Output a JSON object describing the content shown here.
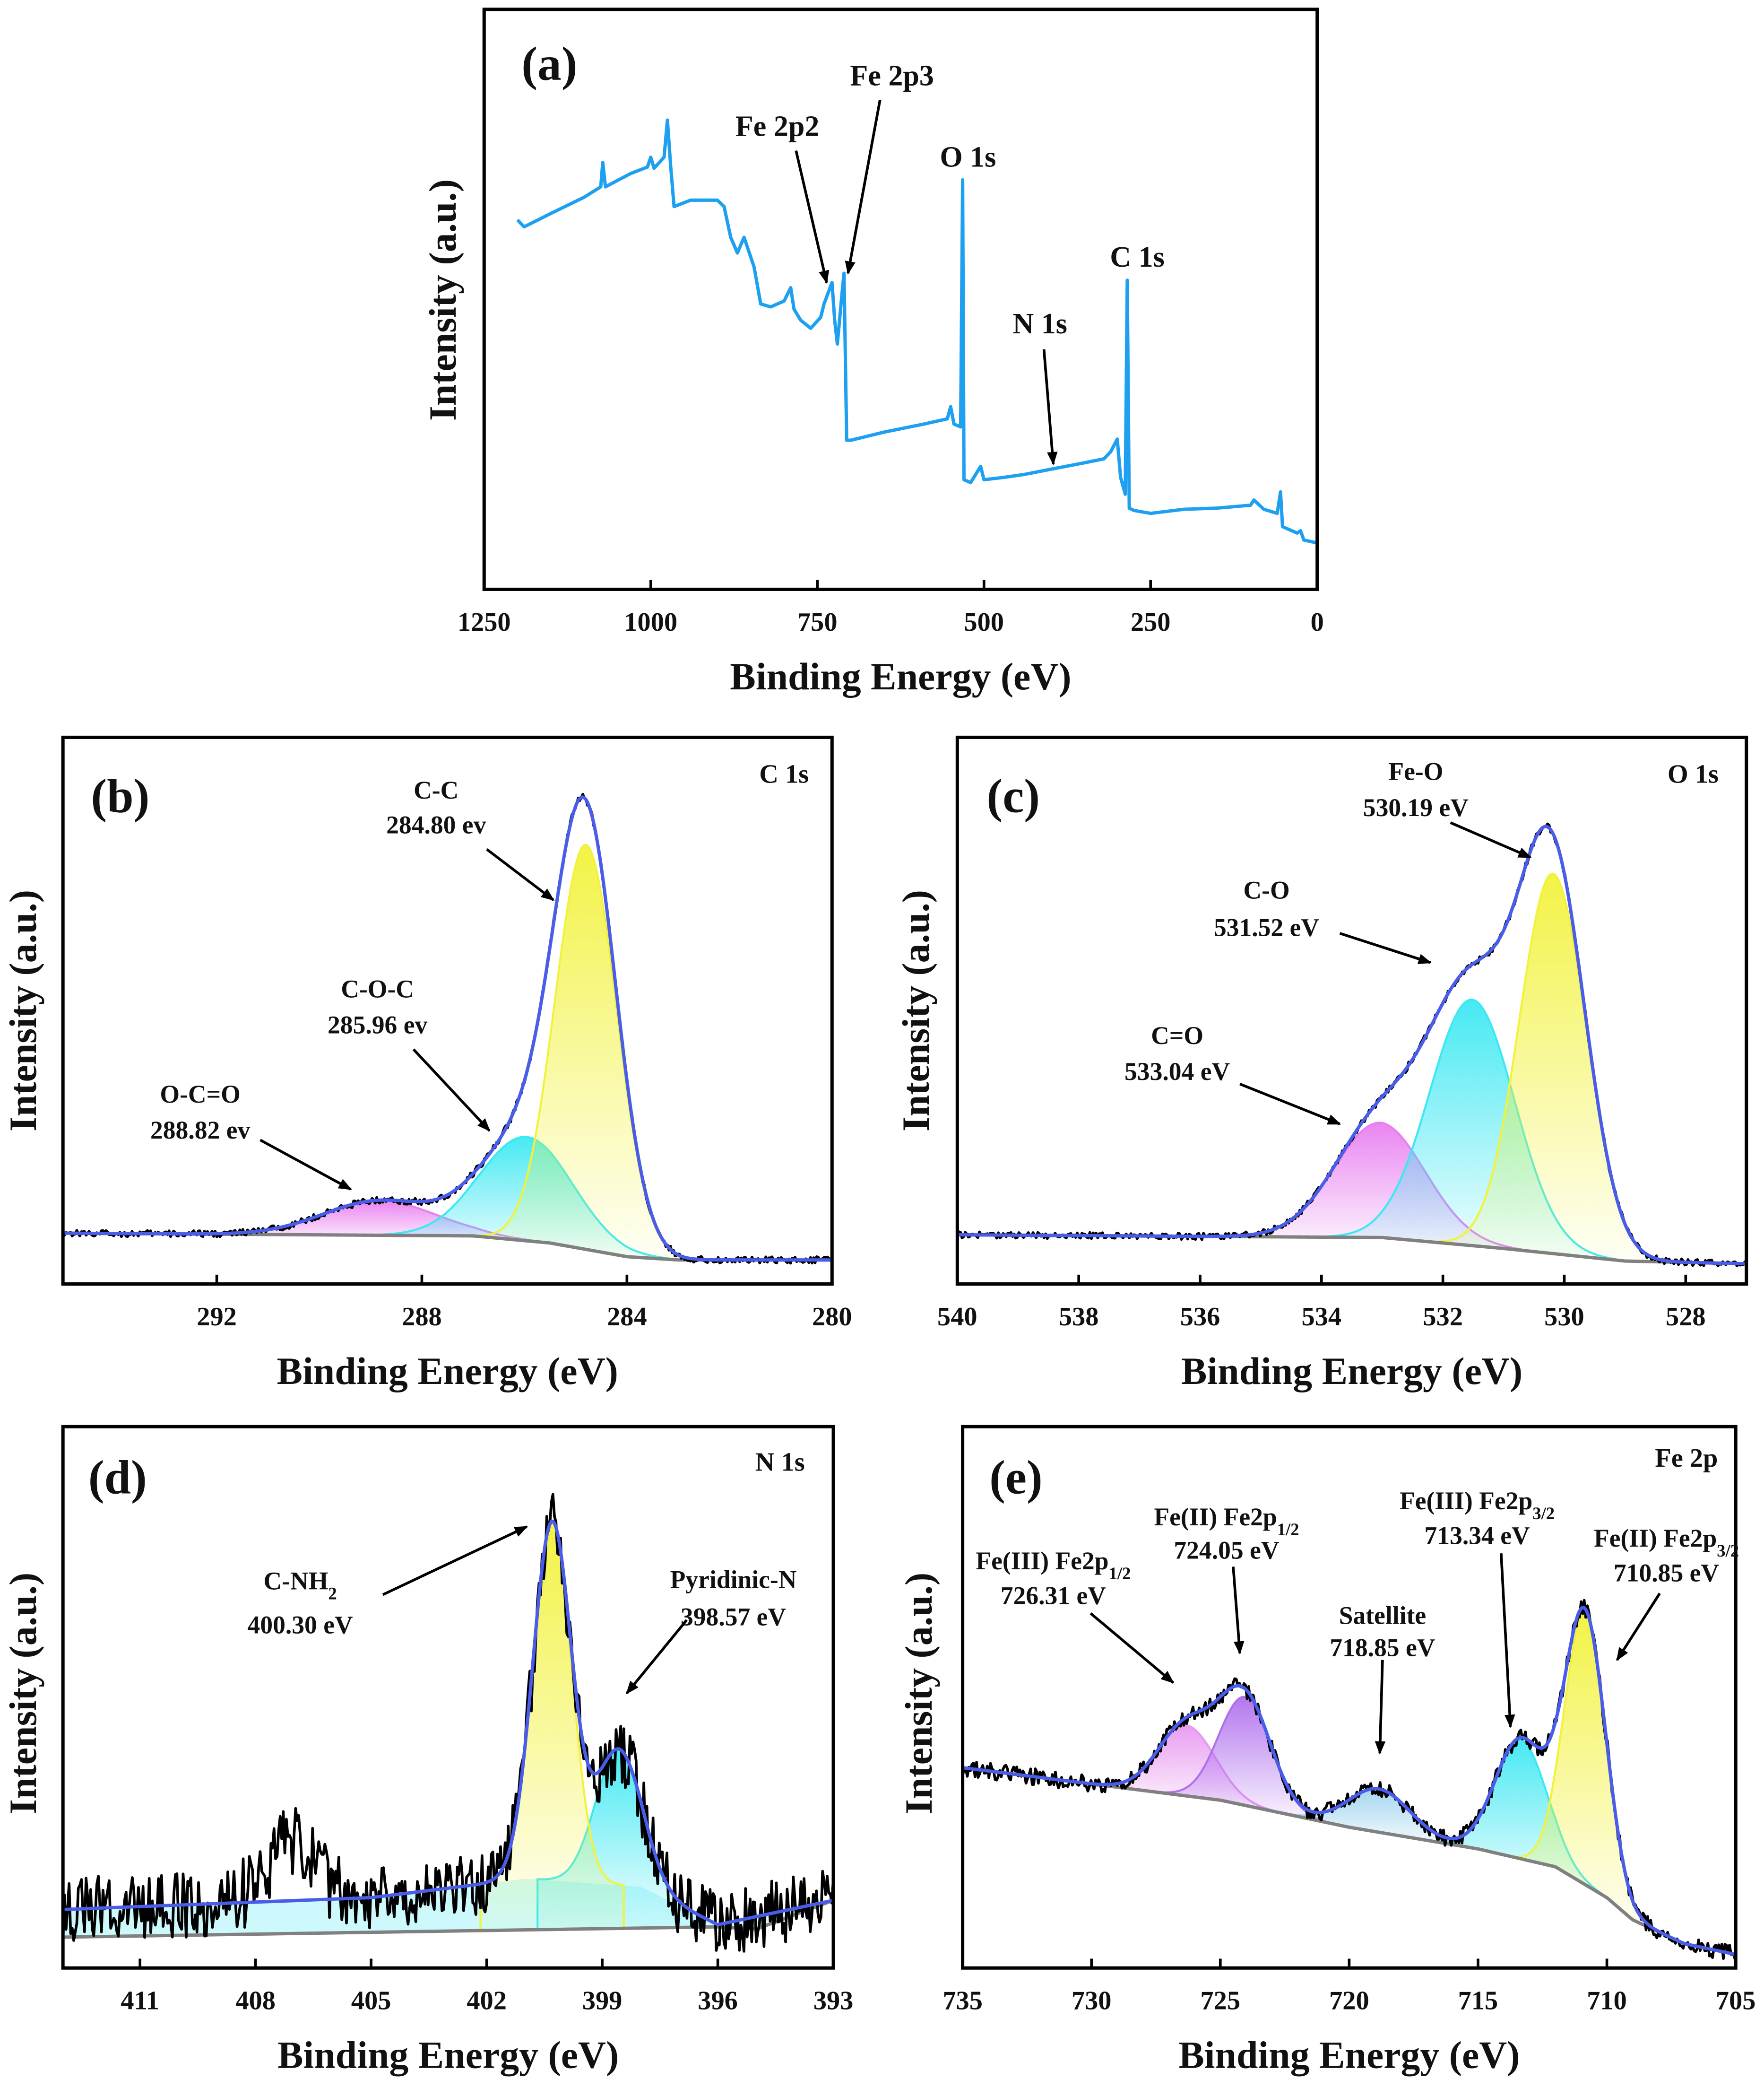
{
  "chart_data": [
    {
      "panel": "a",
      "type": "line",
      "panel_label": "(a)",
      "xlabel": "Binding Energy (eV)",
      "ylabel": "Intensity (a.u.)",
      "xlim": [
        1250,
        0
      ],
      "ylim": [
        0,
        100
      ],
      "xticks": [
        "1250",
        "1000",
        "750",
        "500",
        "250",
        "0"
      ],
      "xtick_values": [
        1250,
        1000,
        750,
        500,
        250,
        0
      ],
      "series_color": "#1ea0f0",
      "points": [
        [
          1200,
          63.7
        ],
        [
          1190,
          62.5
        ],
        [
          1150,
          64.8
        ],
        [
          1100,
          67.6
        ],
        [
          1075,
          69.4
        ],
        [
          1072,
          73.6
        ],
        [
          1068,
          69.4
        ],
        [
          1030,
          71.7
        ],
        [
          1005,
          72.8
        ],
        [
          1000,
          74.5
        ],
        [
          995,
          72.6
        ],
        [
          980,
          74.5
        ],
        [
          975,
          80.9
        ],
        [
          970,
          72.8
        ],
        [
          965,
          66
        ],
        [
          940,
          67.1
        ],
        [
          900,
          67.1
        ],
        [
          890,
          66
        ],
        [
          880,
          60.7
        ],
        [
          870,
          58
        ],
        [
          860,
          60.7
        ],
        [
          845,
          55.6
        ],
        [
          835,
          49.2
        ],
        [
          820,
          48.7
        ],
        [
          800,
          49.7
        ],
        [
          790,
          52
        ],
        [
          785,
          48.3
        ],
        [
          775,
          46.4
        ],
        [
          760,
          45
        ],
        [
          745,
          46.9
        ],
        [
          740,
          49.2
        ],
        [
          728,
          52.9
        ],
        [
          724,
          46.4
        ],
        [
          720,
          42.3
        ],
        [
          713,
          51
        ],
        [
          710,
          54.5
        ],
        [
          706,
          25.7
        ],
        [
          700,
          25.7
        ],
        [
          650,
          27.1
        ],
        [
          590,
          28.5
        ],
        [
          555,
          29.4
        ],
        [
          550,
          31.5
        ],
        [
          545,
          28.5
        ],
        [
          535,
          28
        ],
        [
          532,
          70.6
        ],
        [
          530,
          18.9
        ],
        [
          520,
          18.4
        ],
        [
          505,
          21.2
        ],
        [
          500,
          18.9
        ],
        [
          470,
          19.3
        ],
        [
          440,
          19.8
        ],
        [
          400,
          20.7
        ],
        [
          350,
          21.8
        ],
        [
          320,
          22.5
        ],
        [
          310,
          23.7
        ],
        [
          300,
          25.9
        ],
        [
          295,
          19.3
        ],
        [
          288,
          16.4
        ],
        [
          285,
          53.3
        ],
        [
          282,
          14
        ],
        [
          275,
          13.6
        ],
        [
          250,
          13.1
        ],
        [
          200,
          13.8
        ],
        [
          150,
          14
        ],
        [
          100,
          14.5
        ],
        [
          95,
          15.4
        ],
        [
          80,
          13.8
        ],
        [
          60,
          13.1
        ],
        [
          55,
          16.8
        ],
        [
          52,
          10.8
        ],
        [
          30,
          9.7
        ],
        [
          25,
          10.1
        ],
        [
          20,
          8.5
        ],
        [
          0,
          8
        ]
      ],
      "annotations": [
        {
          "label": "Fe 2p2",
          "sub": "",
          "value": ""
        },
        {
          "label": "Fe 2p3",
          "sub": "",
          "value": ""
        },
        {
          "label": "O 1s",
          "sub": "",
          "value": ""
        },
        {
          "label": "N 1s",
          "sub": "",
          "value": ""
        },
        {
          "label": "C 1s",
          "sub": "",
          "value": ""
        }
      ]
    },
    {
      "panel": "b",
      "type": "line",
      "panel_label": "(b)",
      "corner_label": "C 1s",
      "xlabel": "Binding Energy (eV)",
      "ylabel": "Intensity (a.u.)",
      "xlim": [
        295,
        280
      ],
      "ylim": [
        0,
        100
      ],
      "xticks": [
        "292",
        "288",
        "284",
        "280"
      ],
      "xtick_values": [
        292,
        288,
        284,
        280
      ],
      "noise": 0.6,
      "background": [
        [
          295,
          9.3
        ],
        [
          287,
          8.8
        ],
        [
          285.5,
          7.5
        ],
        [
          284,
          5
        ],
        [
          283,
          4.4
        ],
        [
          280,
          4.4
        ]
      ],
      "components": [
        {
          "name": "C-C",
          "center": 284.8,
          "height": 74,
          "sigma": 0.6,
          "color": "#f2f23c"
        },
        {
          "name": "C-O-C",
          "center": 285.96,
          "height": 19,
          "sigma": 0.9,
          "color": "#3ce8f2"
        },
        {
          "name": "O-C=O",
          "center": 288.82,
          "height": 6.3,
          "sigma": 1.1,
          "color": "#e87ef0"
        }
      ],
      "annotations": [
        {
          "label": "C-C",
          "sub": "",
          "value": "284.80 ev"
        },
        {
          "label": "C-O-C",
          "sub": "",
          "value": "285.96 ev"
        },
        {
          "label": "O-C=O",
          "sub": "",
          "value": "288.82 ev"
        }
      ]
    },
    {
      "panel": "c",
      "type": "line",
      "panel_label": "(c)",
      "corner_label": "O 1s",
      "xlabel": "Binding Energy (eV)",
      "ylabel": "Intensity (a.u.)",
      "xlim": [
        540,
        527
      ],
      "ylim": [
        0,
        100
      ],
      "xticks": [
        "540",
        "538",
        "536",
        "534",
        "532",
        "530",
        "528"
      ],
      "xtick_values": [
        540,
        538,
        536,
        534,
        532,
        530,
        528
      ],
      "noise": 0.6,
      "background": [
        [
          540,
          9
        ],
        [
          533,
          8.5
        ],
        [
          531,
          6.5
        ],
        [
          529,
          4.2
        ],
        [
          527,
          3.7
        ]
      ],
      "components": [
        {
          "name": "Fe-O",
          "center": 530.19,
          "height": 69.5,
          "sigma": 0.55,
          "color": "#f2f23c"
        },
        {
          "name": "C-O",
          "center": 531.52,
          "height": 45,
          "sigma": 0.7,
          "color": "#3ce8f2"
        },
        {
          "name": "C=O",
          "center": 533.04,
          "height": 21,
          "sigma": 0.75,
          "color": "#e87ef0"
        }
      ],
      "annotations": [
        {
          "label": "Fe-O",
          "sub": "",
          "value": "530.19 eV"
        },
        {
          "label": "C-O",
          "sub": "",
          "value": "531.52 eV"
        },
        {
          "label": "C=O",
          "sub": "",
          "value": "533.04 eV"
        }
      ]
    },
    {
      "panel": "d",
      "type": "line",
      "panel_label": "(d)",
      "corner_label": "N 1s",
      "xlabel": "Binding Energy (eV)",
      "ylabel": "Intensity (a.u.)",
      "xlim": [
        413,
        393
      ],
      "ylim": [
        0,
        100
      ],
      "xticks": [
        "411",
        "408",
        "405",
        "402",
        "399",
        "396",
        "393"
      ],
      "xtick_values": [
        411,
        408,
        405,
        402,
        399,
        396,
        393
      ],
      "noise": 6,
      "background": [
        [
          413,
          5.7
        ],
        [
          396,
          7.6
        ],
        [
          395,
          7.2
        ],
        [
          393,
          12.5
        ]
      ],
      "baseline": [
        [
          413,
          10.8
        ],
        [
          405,
          13
        ],
        [
          401,
          16.5
        ],
        [
          398,
          15
        ],
        [
          396,
          8
        ],
        [
          393,
          12.5
        ]
      ],
      "components": [
        {
          "name": "C-NH2",
          "center": 400.3,
          "height": 66,
          "sigma": 0.5,
          "color": "#f2f23c"
        },
        {
          "name": "Pyridinic-N",
          "center": 398.57,
          "height": 25,
          "sigma": 0.6,
          "color": "#3ce8f2"
        }
      ],
      "annotations": [
        {
          "label": "C-NH",
          "sub": "2",
          "value": "400.30 eV"
        },
        {
          "label": "Pyridinic-N",
          "sub": "",
          "value": "398.57 eV"
        }
      ]
    },
    {
      "panel": "e",
      "type": "line",
      "panel_label": "(e)",
      "corner_label": "Fe 2p",
      "xlabel": "Binding Energy (eV)",
      "ylabel": "Intensity (a.u.)",
      "xlim": [
        735,
        705
      ],
      "ylim": [
        0,
        100
      ],
      "xticks": [
        "735",
        "730",
        "725",
        "720",
        "715",
        "710",
        "705"
      ],
      "xtick_values": [
        735,
        730,
        725,
        720,
        715,
        710,
        705
      ],
      "noise": 1.5,
      "background": [
        [
          735,
          37
        ],
        [
          725,
          31
        ],
        [
          720,
          26
        ],
        [
          715,
          22
        ],
        [
          712,
          18.7
        ],
        [
          710,
          13
        ],
        [
          709,
          8.9
        ],
        [
          707,
          4.5
        ],
        [
          705,
          2.5
        ]
      ],
      "components": [
        {
          "name": "Fe(II) Fe2p3/2",
          "center": 710.85,
          "height": 50,
          "sigma": 0.8,
          "color": "#f2f23c"
        },
        {
          "name": "Fe(III) Fe2p3/2",
          "center": 713.34,
          "height": 22,
          "sigma": 1.0,
          "color": "#3ce8f2"
        },
        {
          "name": "Satellite",
          "center": 718.85,
          "height": 8,
          "sigma": 1.2,
          "color": "#9fd4ee"
        },
        {
          "name": "Fe(II) Fe2p1/2",
          "center": 724.05,
          "height": 20,
          "sigma": 1.0,
          "color": "#b070ee"
        },
        {
          "name": "Fe(III) Fe2p1/2",
          "center": 726.31,
          "height": 13,
          "sigma": 1.1,
          "color": "#e898f0"
        }
      ],
      "annotations": [
        {
          "label": "Fe(III) Fe2p",
          "sub": "1/2",
          "value": "726.31 eV"
        },
        {
          "label": "Fe(II) Fe2p",
          "sub": "1/2",
          "value": "724.05 eV"
        },
        {
          "label": "Satellite",
          "sub": "",
          "value": "718.85 eV"
        },
        {
          "label": "Fe(III) Fe2p",
          "sub": "3/2",
          "value": "713.34 eV"
        },
        {
          "label": "Fe(II) Fe2p",
          "sub": "3/2",
          "value": "710.85 eV"
        }
      ]
    }
  ]
}
